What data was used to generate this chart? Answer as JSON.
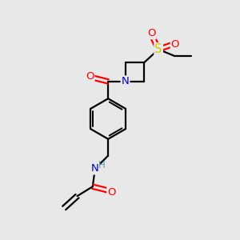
{
  "bg_color": "#e8e8e8",
  "atom_colors": {
    "C": "#000000",
    "N": "#0000cd",
    "O": "#ff0000",
    "S": "#cccc00",
    "H": "#5f9ea0"
  },
  "bond_color": "#000000",
  "bond_width": 1.6,
  "fig_bg": "#e8e8e8",
  "font_size_atom": 9.5
}
